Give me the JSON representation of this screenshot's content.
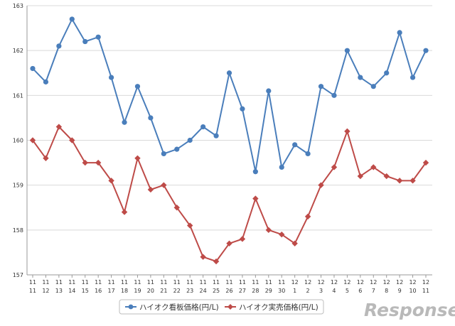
{
  "chart_data": {
    "type": "line",
    "title": "",
    "xlabel": "",
    "ylabel": "",
    "ylim": [
      157,
      163
    ],
    "yticks": [
      157,
      158,
      159,
      160,
      161,
      162,
      163
    ],
    "grid": true,
    "legend_position": "bottom-center",
    "categories": [
      {
        "month": "11",
        "day": "11"
      },
      {
        "month": "11",
        "day": "12"
      },
      {
        "month": "11",
        "day": "13"
      },
      {
        "month": "11",
        "day": "14"
      },
      {
        "month": "11",
        "day": "15"
      },
      {
        "month": "11",
        "day": "16"
      },
      {
        "month": "11",
        "day": "17"
      },
      {
        "month": "11",
        "day": "18"
      },
      {
        "month": "11",
        "day": "19"
      },
      {
        "month": "11",
        "day": "20"
      },
      {
        "month": "11",
        "day": "21"
      },
      {
        "month": "11",
        "day": "22"
      },
      {
        "month": "11",
        "day": "23"
      },
      {
        "month": "11",
        "day": "24"
      },
      {
        "month": "11",
        "day": "25"
      },
      {
        "month": "11",
        "day": "26"
      },
      {
        "month": "11",
        "day": "27"
      },
      {
        "month": "11",
        "day": "28"
      },
      {
        "month": "11",
        "day": "29"
      },
      {
        "month": "11",
        "day": "30"
      },
      {
        "month": "12",
        "day": "1"
      },
      {
        "month": "12",
        "day": "2"
      },
      {
        "month": "12",
        "day": "3"
      },
      {
        "month": "12",
        "day": "4"
      },
      {
        "month": "12",
        "day": "5"
      },
      {
        "month": "12",
        "day": "6"
      },
      {
        "month": "12",
        "day": "7"
      },
      {
        "month": "12",
        "day": "8"
      },
      {
        "month": "12",
        "day": "9"
      },
      {
        "month": "12",
        "day": "10"
      },
      {
        "month": "12",
        "day": "11"
      }
    ],
    "series": [
      {
        "name": "ハイオク看板価格(円/L)",
        "color": "#4a7ebb",
        "marker": "circle",
        "values": [
          161.6,
          161.3,
          162.1,
          162.7,
          162.2,
          162.3,
          161.4,
          160.4,
          161.2,
          160.5,
          159.7,
          159.8,
          160.0,
          160.3,
          160.1,
          161.5,
          160.7,
          159.3,
          161.1,
          159.4,
          159.9,
          159.7,
          161.2,
          161.0,
          162.0,
          161.4,
          161.2,
          161.5,
          162.4,
          161.4,
          162.0
        ]
      },
      {
        "name": "ハイオク実売価格(円/L)",
        "color": "#be4b48",
        "marker": "diamond",
        "values": [
          160.0,
          159.6,
          160.3,
          160.0,
          159.5,
          159.5,
          159.1,
          158.4,
          159.6,
          158.9,
          159.0,
          158.5,
          158.1,
          157.4,
          157.3,
          157.7,
          157.8,
          158.7,
          158.0,
          157.9,
          157.7,
          158.3,
          159.0,
          159.4,
          160.2,
          159.2,
          159.4,
          159.2,
          159.1,
          159.1,
          159.5
        ]
      }
    ]
  },
  "watermark": {
    "text": "Response."
  }
}
